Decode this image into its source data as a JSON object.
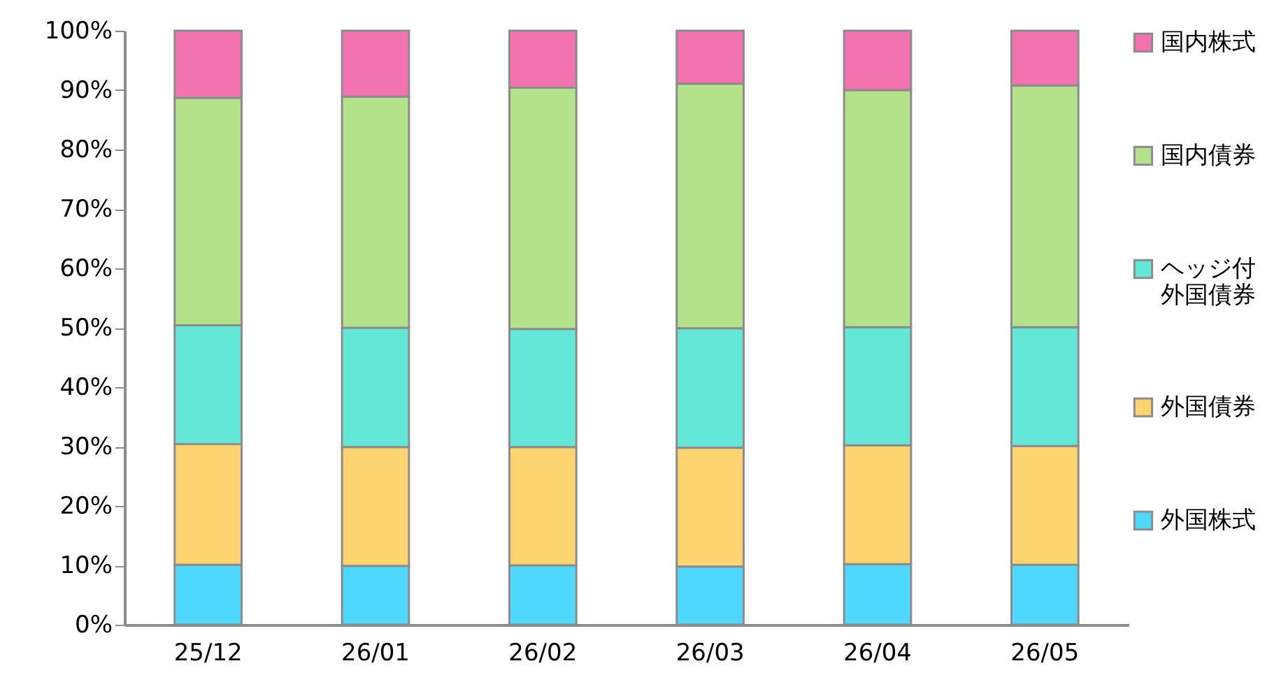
{
  "chart_data": {
    "type": "bar",
    "stacked": true,
    "categories": [
      "25/12",
      "26/01",
      "26/02",
      "26/03",
      "26/04",
      "26/05"
    ],
    "series": [
      {
        "name": "外国株式",
        "color": "#4fd8fd",
        "values": [
          10.1,
          9.9,
          10.0,
          9.8,
          10.2,
          10.1
        ]
      },
      {
        "name": "外国債券",
        "color": "#fdd46f",
        "values": [
          20.3,
          20.0,
          19.9,
          20.0,
          20.0,
          20.0
        ]
      },
      {
        "name": "ヘッジ付外国債券",
        "color": "#63e8d8",
        "values": [
          20.0,
          20.1,
          19.9,
          20.1,
          19.9,
          20.0
        ]
      },
      {
        "name": "国内債券",
        "color": "#b3e28a",
        "values": [
          38.3,
          38.9,
          40.6,
          41.2,
          39.9,
          40.7
        ]
      },
      {
        "name": "国内株式",
        "color": "#f273b0",
        "values": [
          11.3,
          11.1,
          9.6,
          8.9,
          10.0,
          9.2
        ]
      }
    ],
    "ylim": [
      0,
      100
    ],
    "yticks": [
      {
        "value": 0,
        "label": "0%"
      },
      {
        "value": 10,
        "label": "10%"
      },
      {
        "value": 20,
        "label": "20%"
      },
      {
        "value": 30,
        "label": "30%"
      },
      {
        "value": 40,
        "label": "40%"
      },
      {
        "value": 50,
        "label": "50%"
      },
      {
        "value": 60,
        "label": "60%"
      },
      {
        "value": 70,
        "label": "70%"
      },
      {
        "value": 80,
        "label": "80%"
      },
      {
        "value": 90,
        "label": "90%"
      },
      {
        "value": 100,
        "label": "100%"
      }
    ],
    "grid": false,
    "legend": "right"
  }
}
